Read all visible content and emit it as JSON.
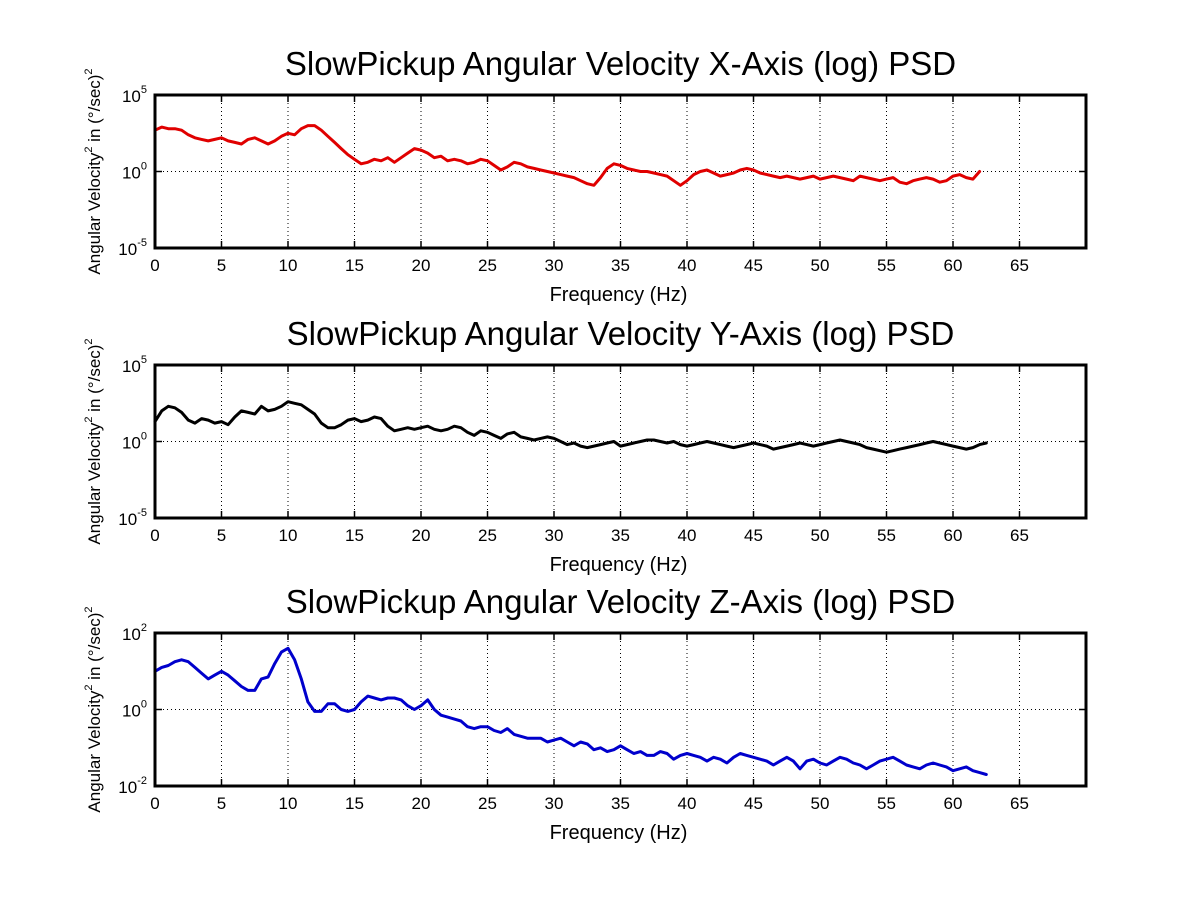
{
  "chart_data": [
    {
      "type": "line",
      "title": "SlowPickup Angular Velocity X-Axis (log) PSD",
      "xlabel": "Frequency (Hz)",
      "ylabel": "Angular Velocity² in (°/sec)²",
      "ylabel_parts": {
        "pre": "Angular Velocity",
        "sup1": "2",
        "mid": " in (°/sec)",
        "sup2": "2"
      },
      "xlim": [
        0,
        70
      ],
      "ylim_log10": [
        -5,
        5
      ],
      "y_scale": "log",
      "grid": true,
      "x_ticks": [
        "0",
        "5",
        "10",
        "15",
        "20",
        "25",
        "30",
        "35",
        "40",
        "45",
        "50",
        "55",
        "60",
        "65"
      ],
      "y_ticks": [
        {
          "value": -5,
          "base": "10",
          "exp": "-5"
        },
        {
          "value": 0,
          "base": "10",
          "exp": "0"
        },
        {
          "value": 5,
          "base": "10",
          "exp": "5"
        }
      ],
      "series": [
        {
          "color": "#e00000",
          "x_step": 0.5,
          "log10_y": [
            2.7,
            2.9,
            2.8,
            2.8,
            2.7,
            2.4,
            2.2,
            2.1,
            2.0,
            2.1,
            2.2,
            2.0,
            1.9,
            1.8,
            2.1,
            2.2,
            2.0,
            1.8,
            2.0,
            2.3,
            2.5,
            2.4,
            2.8,
            3.0,
            3.0,
            2.7,
            2.3,
            1.9,
            1.5,
            1.1,
            0.8,
            0.5,
            0.6,
            0.8,
            0.7,
            0.9,
            0.6,
            0.9,
            1.2,
            1.5,
            1.4,
            1.2,
            0.9,
            1.0,
            0.7,
            0.8,
            0.7,
            0.5,
            0.6,
            0.8,
            0.7,
            0.4,
            0.1,
            0.3,
            0.6,
            0.5,
            0.3,
            0.2,
            0.1,
            0.0,
            -0.1,
            -0.2,
            -0.3,
            -0.4,
            -0.6,
            -0.8,
            -0.9,
            -0.4,
            0.2,
            0.5,
            0.4,
            0.2,
            0.1,
            0.0,
            0.0,
            -0.1,
            -0.2,
            -0.3,
            -0.6,
            -0.9,
            -0.6,
            -0.2,
            0.0,
            0.1,
            -0.1,
            -0.3,
            -0.2,
            -0.1,
            0.1,
            0.2,
            0.1,
            -0.1,
            -0.2,
            -0.3,
            -0.4,
            -0.3,
            -0.4,
            -0.5,
            -0.4,
            -0.3,
            -0.5,
            -0.4,
            -0.3,
            -0.4,
            -0.5,
            -0.6,
            -0.3,
            -0.4,
            -0.5,
            -0.6,
            -0.5,
            -0.4,
            -0.7,
            -0.8,
            -0.6,
            -0.5,
            -0.4,
            -0.5,
            -0.7,
            -0.6,
            -0.3,
            -0.2,
            -0.4,
            -0.5,
            0.0
          ]
        }
      ]
    },
    {
      "type": "line",
      "title": "SlowPickup Angular Velocity Y-Axis (log) PSD",
      "xlabel": "Frequency (Hz)",
      "ylabel": "Angular Velocity² in (°/sec)²",
      "ylabel_parts": {
        "pre": "Angular Velocity",
        "sup1": "2",
        "mid": " in (°/sec)",
        "sup2": "2"
      },
      "xlim": [
        0,
        70
      ],
      "ylim_log10": [
        -5,
        5
      ],
      "y_scale": "log",
      "grid": true,
      "x_ticks": [
        "0",
        "5",
        "10",
        "15",
        "20",
        "25",
        "30",
        "35",
        "40",
        "45",
        "50",
        "55",
        "60",
        "65"
      ],
      "y_ticks": [
        {
          "value": -5,
          "base": "10",
          "exp": "-5"
        },
        {
          "value": 0,
          "base": "10",
          "exp": "0"
        },
        {
          "value": 5,
          "base": "10",
          "exp": "5"
        }
      ],
      "series": [
        {
          "color": "#000000",
          "x_step": 0.5,
          "log10_y": [
            1.3,
            2.0,
            2.3,
            2.2,
            1.9,
            1.4,
            1.2,
            1.5,
            1.4,
            1.2,
            1.3,
            1.1,
            1.6,
            2.0,
            1.9,
            1.8,
            2.3,
            2.0,
            2.1,
            2.3,
            2.6,
            2.5,
            2.4,
            2.1,
            1.8,
            1.2,
            0.9,
            0.9,
            1.1,
            1.4,
            1.5,
            1.3,
            1.4,
            1.6,
            1.5,
            1.0,
            0.7,
            0.8,
            0.9,
            0.8,
            0.9,
            1.0,
            0.8,
            0.7,
            0.8,
            1.0,
            0.9,
            0.6,
            0.4,
            0.7,
            0.6,
            0.4,
            0.2,
            0.5,
            0.6,
            0.3,
            0.2,
            0.1,
            0.2,
            0.3,
            0.2,
            0.0,
            -0.2,
            -0.1,
            -0.3,
            -0.4,
            -0.3,
            -0.2,
            -0.1,
            0.0,
            -0.3,
            -0.2,
            -0.1,
            0.0,
            0.1,
            0.1,
            0.0,
            -0.1,
            0.0,
            -0.2,
            -0.3,
            -0.2,
            -0.1,
            0.0,
            -0.1,
            -0.2,
            -0.3,
            -0.4,
            -0.3,
            -0.2,
            -0.1,
            -0.2,
            -0.3,
            -0.5,
            -0.4,
            -0.3,
            -0.2,
            -0.1,
            -0.2,
            -0.3,
            -0.2,
            -0.1,
            0.0,
            0.1,
            0.0,
            -0.1,
            -0.2,
            -0.4,
            -0.5,
            -0.6,
            -0.7,
            -0.6,
            -0.5,
            -0.4,
            -0.3,
            -0.2,
            -0.1,
            0.0,
            -0.1,
            -0.2,
            -0.3,
            -0.4,
            -0.5,
            -0.4,
            -0.2,
            -0.1
          ]
        }
      ]
    },
    {
      "type": "line",
      "title": "SlowPickup Angular Velocity Z-Axis (log) PSD",
      "xlabel": "Frequency (Hz)",
      "ylabel": "Angular Velocity² in (°/sec)²",
      "ylabel_parts": {
        "pre": "Angular Velocity",
        "sup1": "2",
        "mid": " in (°/sec)",
        "sup2": "2"
      },
      "xlim": [
        0,
        70
      ],
      "ylim_log10": [
        -2,
        2
      ],
      "y_scale": "log",
      "grid": true,
      "x_ticks": [
        "0",
        "5",
        "10",
        "15",
        "20",
        "25",
        "30",
        "35",
        "40",
        "45",
        "50",
        "55",
        "60",
        "65"
      ],
      "y_ticks": [
        {
          "value": -2,
          "base": "10",
          "exp": "-2"
        },
        {
          "value": 0,
          "base": "10",
          "exp": "0"
        },
        {
          "value": 2,
          "base": "10",
          "exp": "2"
        }
      ],
      "series": [
        {
          "color": "#0000cc",
          "x_step": 0.5,
          "log10_y": [
            1.0,
            1.1,
            1.15,
            1.25,
            1.3,
            1.25,
            1.1,
            0.95,
            0.8,
            0.9,
            1.0,
            0.9,
            0.75,
            0.6,
            0.5,
            0.5,
            0.8,
            0.85,
            1.2,
            1.5,
            1.6,
            1.3,
            0.8,
            0.2,
            -0.05,
            -0.05,
            0.15,
            0.15,
            0.0,
            -0.05,
            0.0,
            0.2,
            0.35,
            0.3,
            0.25,
            0.3,
            0.3,
            0.25,
            0.1,
            0.0,
            0.1,
            0.25,
            0.0,
            -0.15,
            -0.2,
            -0.25,
            -0.3,
            -0.45,
            -0.5,
            -0.45,
            -0.45,
            -0.55,
            -0.6,
            -0.5,
            -0.65,
            -0.7,
            -0.75,
            -0.75,
            -0.75,
            -0.85,
            -0.8,
            -0.75,
            -0.85,
            -0.95,
            -0.85,
            -0.9,
            -1.05,
            -1.0,
            -1.1,
            -1.05,
            -0.95,
            -1.05,
            -1.15,
            -1.1,
            -1.2,
            -1.2,
            -1.1,
            -1.15,
            -1.3,
            -1.2,
            -1.15,
            -1.2,
            -1.25,
            -1.35,
            -1.25,
            -1.3,
            -1.4,
            -1.25,
            -1.15,
            -1.2,
            -1.25,
            -1.3,
            -1.35,
            -1.45,
            -1.35,
            -1.25,
            -1.35,
            -1.55,
            -1.35,
            -1.3,
            -1.4,
            -1.45,
            -1.35,
            -1.25,
            -1.3,
            -1.4,
            -1.45,
            -1.55,
            -1.45,
            -1.35,
            -1.3,
            -1.25,
            -1.35,
            -1.45,
            -1.5,
            -1.55,
            -1.45,
            -1.4,
            -1.45,
            -1.5,
            -1.6,
            -1.55,
            -1.5,
            -1.6,
            -1.65,
            -1.7
          ]
        }
      ]
    }
  ]
}
